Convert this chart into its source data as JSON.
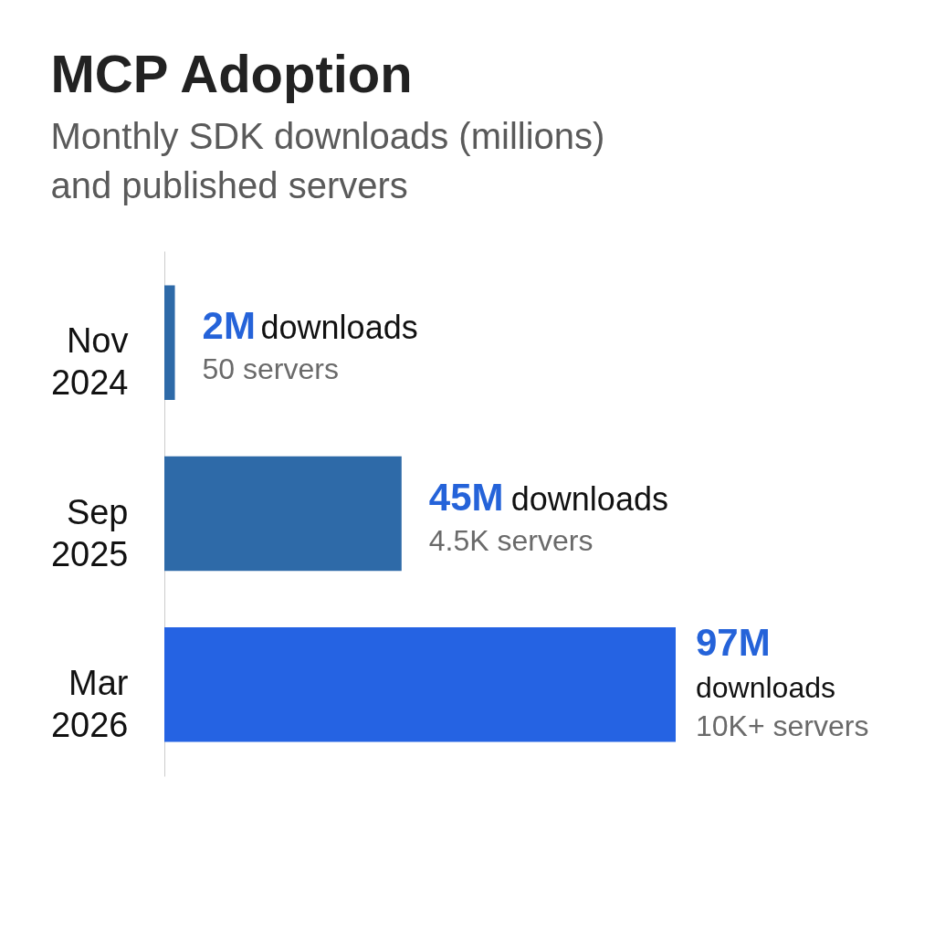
{
  "chart_data": {
    "type": "bar",
    "orientation": "horizontal",
    "title": "MCP Adoption",
    "subtitle": "Monthly SDK downloads (millions)\nand published servers",
    "categories": [
      "Nov 2024",
      "Sep 2025",
      "Mar 2026"
    ],
    "values": [
      2,
      45,
      97
    ],
    "colors": [
      "#2e6aa8",
      "#2e6aa8",
      "#2563e3"
    ],
    "value_labels": [
      "2M",
      "45M",
      "97M"
    ],
    "annotations": [
      "downloads",
      "50 servers",
      "downloads",
      "4.5K servers",
      "downloads",
      "10K+ servers"
    ],
    "tick_labels": "y",
    "grid": false
  }
}
